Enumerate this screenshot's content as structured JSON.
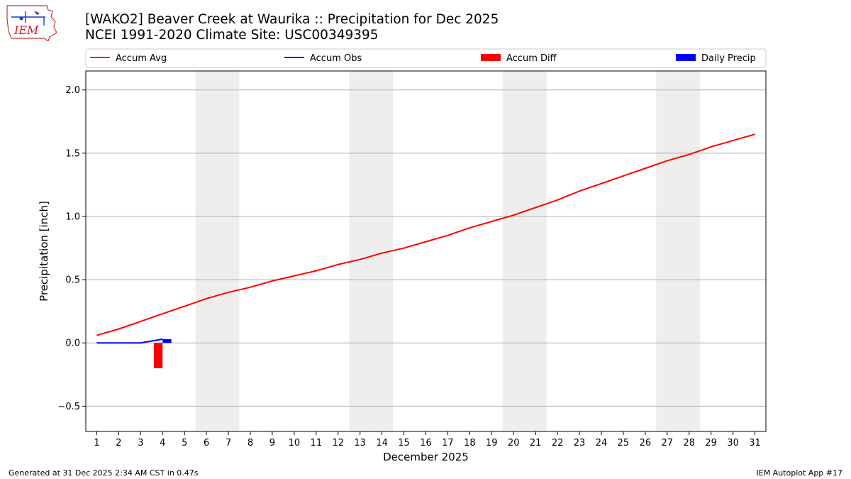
{
  "header": {
    "title_line1": "[WAKO2] Beaver Creek at Waurika :: Precipitation for Dec 2025",
    "title_line2": "NCEI 1991-2020 Climate Site: USC00349395",
    "logo_text": "IEM"
  },
  "footer": {
    "generated": "Generated at 31 Dec 2025 2:34 AM CST in 0.47s",
    "app": "IEM Autoplot App #17"
  },
  "colors": {
    "avg": "#ff0000",
    "obs": "#0000ff",
    "diff": "#ff0000",
    "daily": "#0000ff",
    "weekend_shade": "#eeeeee",
    "grid": "#b0b0b0"
  },
  "chart_data": {
    "type": "line",
    "xlabel": "December 2025",
    "ylabel": "Precipitation [inch]",
    "xlim": [
      0.5,
      31.5
    ],
    "ylim": [
      -0.7,
      2.15
    ],
    "yticks": [
      -0.5,
      0.0,
      0.5,
      1.0,
      1.5,
      2.0
    ],
    "ytick_labels": [
      "−0.5",
      "0.0",
      "0.5",
      "1.0",
      "1.5",
      "2.0"
    ],
    "x": [
      1,
      2,
      3,
      4,
      5,
      6,
      7,
      8,
      9,
      10,
      11,
      12,
      13,
      14,
      15,
      16,
      17,
      18,
      19,
      20,
      21,
      22,
      23,
      24,
      25,
      26,
      27,
      28,
      29,
      30,
      31
    ],
    "xtick_labels": [
      "1",
      "2",
      "3",
      "4",
      "5",
      "6",
      "7",
      "8",
      "9",
      "10",
      "11",
      "12",
      "13",
      "14",
      "15",
      "16",
      "17",
      "18",
      "19",
      "20",
      "21",
      "22",
      "23",
      "24",
      "25",
      "26",
      "27",
      "28",
      "29",
      "30",
      "31"
    ],
    "grid": "y",
    "legend_position": "top",
    "legend": [
      "Accum Avg",
      "Accum Obs",
      "Accum Diff",
      "Daily Precip"
    ],
    "shaded_days": [
      [
        6,
        7
      ],
      [
        13,
        14
      ],
      [
        20,
        21
      ],
      [
        27,
        28
      ]
    ],
    "series": [
      {
        "name": "Accum Avg",
        "kind": "line",
        "x": [
          1,
          2,
          3,
          4,
          5,
          6,
          7,
          8,
          9,
          10,
          11,
          12,
          13,
          14,
          15,
          16,
          17,
          18,
          19,
          20,
          21,
          22,
          23,
          24,
          25,
          26,
          27,
          28,
          29,
          30,
          31
        ],
        "values": [
          0.06,
          0.11,
          0.17,
          0.23,
          0.29,
          0.35,
          0.4,
          0.44,
          0.49,
          0.53,
          0.57,
          0.62,
          0.66,
          0.71,
          0.75,
          0.8,
          0.85,
          0.91,
          0.96,
          1.01,
          1.07,
          1.13,
          1.2,
          1.26,
          1.32,
          1.38,
          1.44,
          1.49,
          1.55,
          1.6,
          1.65
        ]
      },
      {
        "name": "Accum Obs",
        "kind": "line",
        "x": [
          1,
          2,
          3,
          4
        ],
        "values": [
          0.0,
          0.0,
          0.0,
          0.03
        ]
      },
      {
        "name": "Accum Diff",
        "kind": "bar",
        "x": [
          4
        ],
        "values": [
          -0.2
        ]
      },
      {
        "name": "Daily Precip",
        "kind": "bar",
        "x": [
          4
        ],
        "values": [
          0.03
        ]
      }
    ]
  }
}
